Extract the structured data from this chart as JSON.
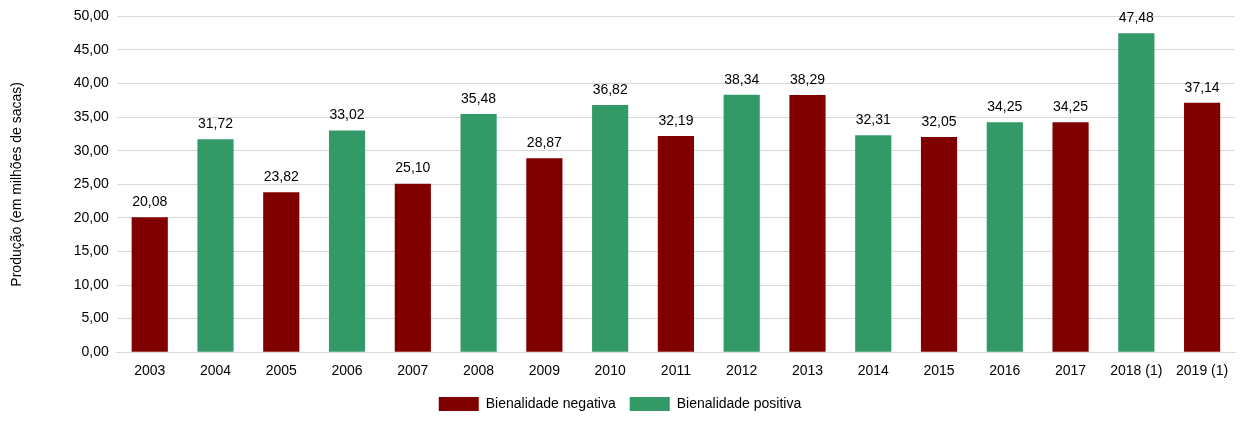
{
  "chart_data": {
    "type": "bar",
    "ylabel": "Produção (em milhões de sacas)",
    "categories": [
      "2003",
      "2004",
      "2005",
      "2006",
      "2007",
      "2008",
      "2009",
      "2010",
      "2011",
      "2012",
      "2013",
      "2014",
      "2015",
      "2016",
      "2017",
      "2018 (1)",
      "2019 (1)"
    ],
    "stacked": true,
    "series": [
      {
        "name": "Bienalidade negativa",
        "color": "#800000",
        "values": [
          20.08,
          null,
          23.82,
          null,
          25.1,
          null,
          28.87,
          null,
          32.19,
          null,
          38.29,
          null,
          32.05,
          null,
          34.25,
          null,
          37.14
        ],
        "value_labels": [
          "20,08",
          null,
          "23,82",
          null,
          "25,10",
          null,
          "28,87",
          null,
          "32,19",
          null,
          "38,29",
          null,
          "32,05",
          null,
          "34,25",
          null,
          "37,14"
        ]
      },
      {
        "name": "Bienalidade positiva",
        "color": "#339966",
        "values": [
          null,
          31.72,
          null,
          33.02,
          null,
          35.48,
          null,
          36.82,
          null,
          38.34,
          null,
          32.31,
          null,
          34.25,
          null,
          47.48,
          null
        ],
        "value_labels": [
          null,
          "31,72",
          null,
          "33,02",
          null,
          "35,48",
          null,
          "36,82",
          null,
          "38,34",
          null,
          "32,31",
          null,
          "34,25",
          null,
          "47,48",
          null
        ]
      }
    ],
    "ylim": [
      0,
      50
    ],
    "yticks": [
      {
        "value": 0,
        "label": "0,00"
      },
      {
        "value": 5,
        "label": "5,00"
      },
      {
        "value": 10,
        "label": "10,00"
      },
      {
        "value": 15,
        "label": "15,00"
      },
      {
        "value": 20,
        "label": "20,00"
      },
      {
        "value": 25,
        "label": "25,00"
      },
      {
        "value": 30,
        "label": "30,00"
      },
      {
        "value": 35,
        "label": "35,00"
      },
      {
        "value": 40,
        "label": "40,00"
      },
      {
        "value": 45,
        "label": "45,00"
      },
      {
        "value": 50,
        "label": "50,00"
      }
    ],
    "grid": "y",
    "legend": "bottom"
  }
}
